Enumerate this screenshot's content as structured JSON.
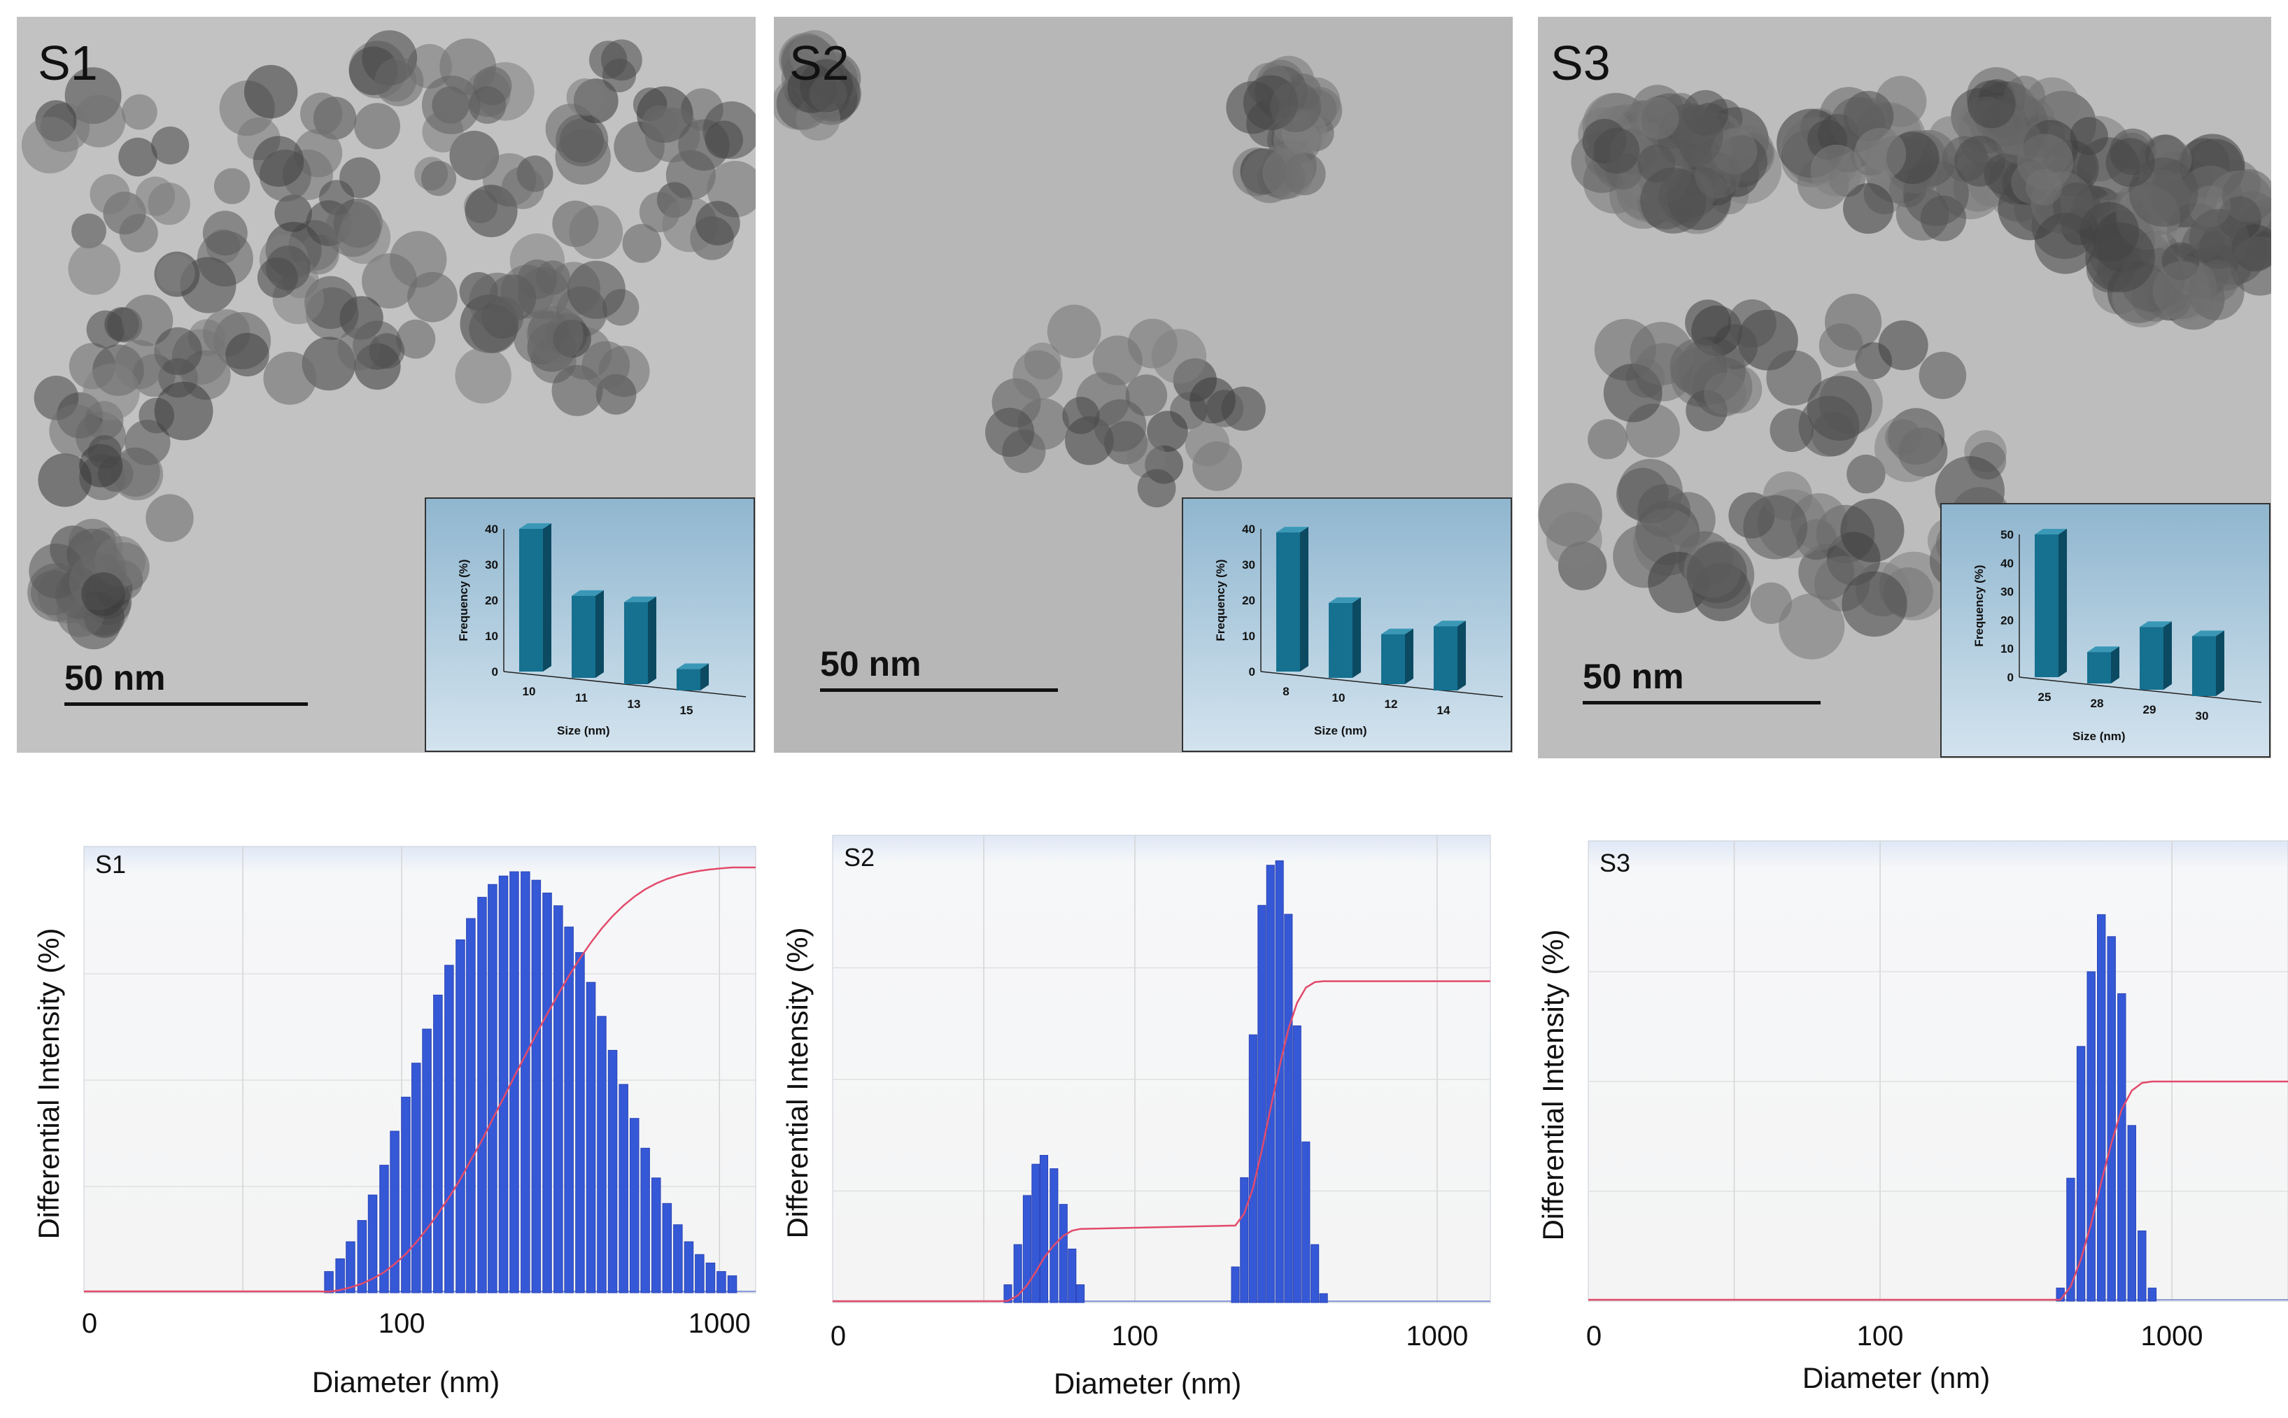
{
  "chart_data": [
    {
      "type": "bar",
      "panel_label": "S1",
      "scale_bar": "50 nm",
      "xlabel": "Size (nm)",
      "ylabel": "Frequency (%)",
      "categories": [
        "10",
        "11",
        "13",
        "15"
      ],
      "values": [
        40,
        23,
        23,
        6
      ],
      "yticks": [
        "0",
        "10",
        "20",
        "30",
        "40"
      ],
      "ylim": [
        0,
        40
      ]
    },
    {
      "type": "bar",
      "panel_label": "S2",
      "scale_bar": "50 nm",
      "xlabel": "Size (nm)",
      "ylabel": "Frequency (%)",
      "categories": [
        "8",
        "10",
        "12",
        "14"
      ],
      "values": [
        39,
        21,
        14,
        18
      ],
      "yticks": [
        "0",
        "10",
        "20",
        "30",
        "40"
      ],
      "ylim": [
        0,
        40
      ]
    },
    {
      "type": "bar",
      "panel_label": "S3",
      "scale_bar": "50 nm",
      "xlabel": "Size (nm)",
      "ylabel": "Frequency (%)",
      "categories": [
        "25",
        "28",
        "29",
        "30"
      ],
      "values": [
        50,
        11,
        22,
        21
      ],
      "yticks": [
        "0",
        "10",
        "20",
        "30",
        "40",
        "50"
      ],
      "ylim": [
        0,
        50
      ]
    },
    {
      "type": "bar",
      "panel_label": "S1",
      "xlabel": "Diameter (nm)",
      "ylabel": "Differential Intensity (%)",
      "xticks": [
        "0",
        "100",
        "1000"
      ],
      "x_scale": "log",
      "xlim": [
        10,
        1300
      ],
      "ylim": [
        0,
        100
      ],
      "cumulative_line": true,
      "x": [
        59,
        64,
        69,
        75,
        81,
        88,
        95,
        103,
        111,
        120,
        130,
        141,
        153,
        165,
        179,
        193,
        209,
        226,
        245,
        265,
        287,
        311,
        336,
        364,
        394,
        426,
        461,
        499,
        540,
        584,
        632,
        684,
        740,
        801,
        866,
        937,
        1014,
        1097
      ],
      "values": [
        5,
        8,
        12,
        17,
        23,
        30,
        38,
        46,
        54,
        62,
        70,
        77,
        83,
        88,
        93,
        96,
        98,
        99,
        99,
        97,
        94,
        91,
        86,
        80,
        73,
        65,
        57,
        49,
        41,
        34,
        27,
        21,
        16,
        12,
        9,
        7,
        5,
        4
      ]
    },
    {
      "type": "bar",
      "panel_label": "S2",
      "xlabel": "Diameter (nm)",
      "ylabel": "Differential Intensity (%)",
      "xticks": [
        "0",
        "100",
        "1000"
      ],
      "x_scale": "log",
      "xlim": [
        10,
        1500
      ],
      "ylim": [
        0,
        100
      ],
      "cumulative_line": true,
      "x": [
        38,
        41,
        44,
        47,
        50,
        54,
        58,
        62,
        66,
        215,
        230,
        246,
        263,
        281,
        301,
        322,
        344,
        368,
        394,
        421
      ],
      "values": [
        4,
        13,
        24,
        31,
        33,
        30,
        22,
        12,
        4,
        8,
        28,
        60,
        89,
        98,
        99,
        87,
        62,
        36,
        13,
        2
      ]
    },
    {
      "type": "bar",
      "panel_label": "S3",
      "xlabel": "Diameter (nm)",
      "ylabel": "Differential Intensity (%)",
      "xticks": [
        "0",
        "100",
        "1000"
      ],
      "x_scale": "log",
      "xlim": [
        10,
        2500
      ],
      "ylim": [
        0,
        100
      ],
      "cumulative_line": true,
      "x": [
        415,
        450,
        488,
        529,
        573,
        621,
        673,
        729,
        790,
        856
      ],
      "values": [
        3,
        28,
        58,
        75,
        88,
        83,
        70,
        40,
        16,
        3
      ]
    }
  ]
}
